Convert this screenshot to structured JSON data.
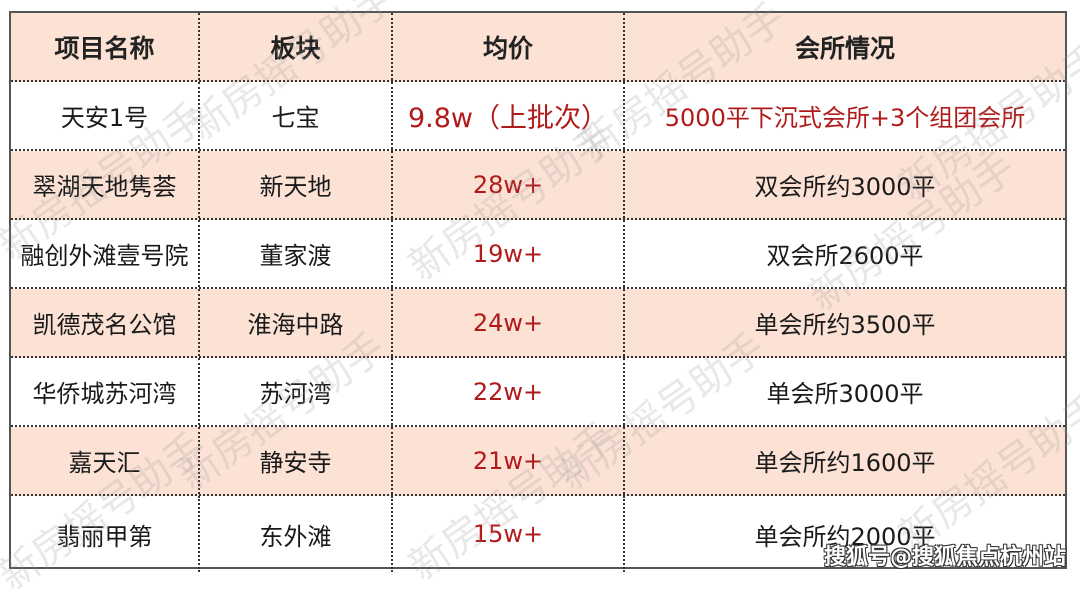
{
  "table": {
    "headers": [
      "项目名称",
      "板块",
      "均价",
      "会所情况"
    ],
    "rows": [
      {
        "name": "天安1号",
        "area": "七宝",
        "price": "9.8w（上批次）",
        "club": "5000平下沉式会所+3个组团会所"
      },
      {
        "name": "翠湖天地隽荟",
        "area": "新天地",
        "price": "28w+",
        "club": "双会所约3000平"
      },
      {
        "name": "融创外滩壹号院",
        "area": "董家渡",
        "price": "19w+",
        "club": "双会所2600平"
      },
      {
        "name": "凯德茂名公馆",
        "area": "淮海中路",
        "price": "24w+",
        "club": "单会所约3500平"
      },
      {
        "name": "华侨城苏河湾",
        "area": "苏河湾",
        "price": "22w+",
        "club": "单会所3000平"
      },
      {
        "name": "嘉天汇",
        "area": "静安寺",
        "price": "21w+",
        "club": "单会所约1600平"
      },
      {
        "name": "翡丽甲第",
        "area": "东外滩",
        "price": "15w+",
        "club": "单会所约2000平"
      }
    ]
  },
  "watermark": "新房摇号助手",
  "source_watermark": "搜狐号@搜狐焦点杭州站",
  "colors": {
    "header_bg": "#fbe2d5",
    "stripe_bg": "#fbe2d5",
    "price_red": "#b11a1a"
  }
}
